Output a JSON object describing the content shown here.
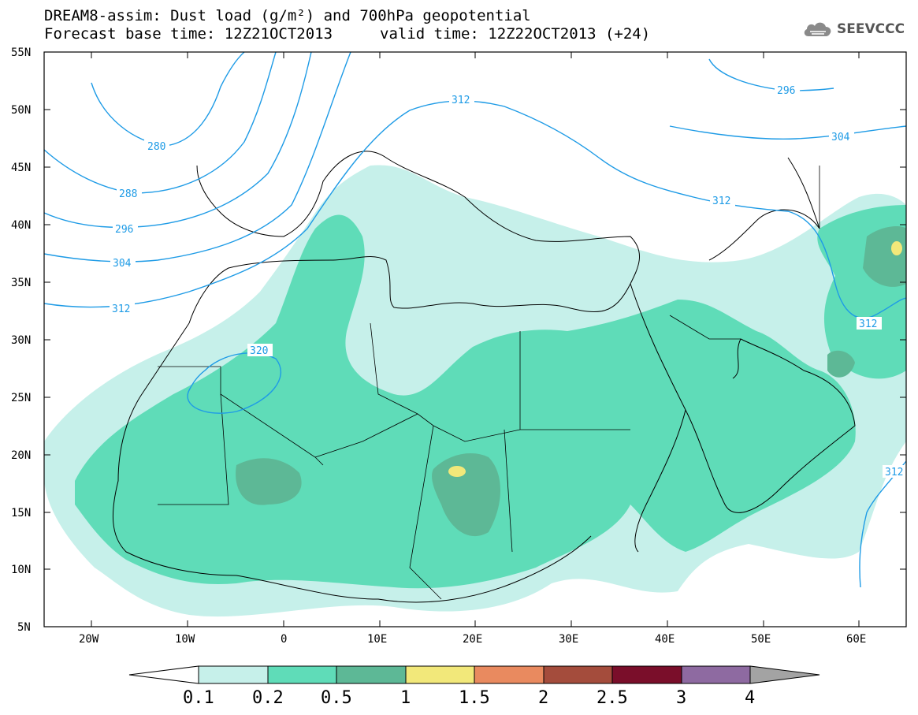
{
  "header": {
    "title_line1": "DREAM8-assim: Dust load (g/m²) and 700hPa geopotential",
    "title_line2": "Forecast base time: 12Z21OCT2013",
    "valid_time": "valid time: 12Z22OCT2013 (+24)",
    "logo_text": "SEEVCCC"
  },
  "map": {
    "lat_labels": [
      "55N",
      "50N",
      "45N",
      "40N",
      "35N",
      "30N",
      "25N",
      "20N",
      "15N",
      "10N",
      "5N"
    ],
    "lon_labels": [
      "20W",
      "10W",
      "0",
      "10E",
      "20E",
      "30E",
      "40E",
      "50E",
      "60E"
    ],
    "contour_labels": [
      "280",
      "288",
      "296",
      "304",
      "312",
      "320",
      "312",
      "296",
      "304",
      "312",
      "312",
      "312"
    ]
  },
  "colorbar": {
    "labels": [
      "0.1",
      "0.2",
      "0.5",
      "1",
      "1.5",
      "2",
      "2.5",
      "3",
      "4"
    ],
    "colors": [
      "#c6f0ea",
      "#5fdcb8",
      "#5db896",
      "#f2e87a",
      "#e98a5f",
      "#a44c3c",
      "#7a0e2a",
      "#8e6aa1"
    ],
    "under_color": "#ffffff",
    "over_color": "#a3a3a3"
  },
  "colors": {
    "contour": "#1e9be6",
    "dust_light": "#c6f0ea",
    "dust_mid": "#5fdcb8",
    "dust_dark": "#5db896",
    "dust_yellow": "#f2e87a"
  }
}
